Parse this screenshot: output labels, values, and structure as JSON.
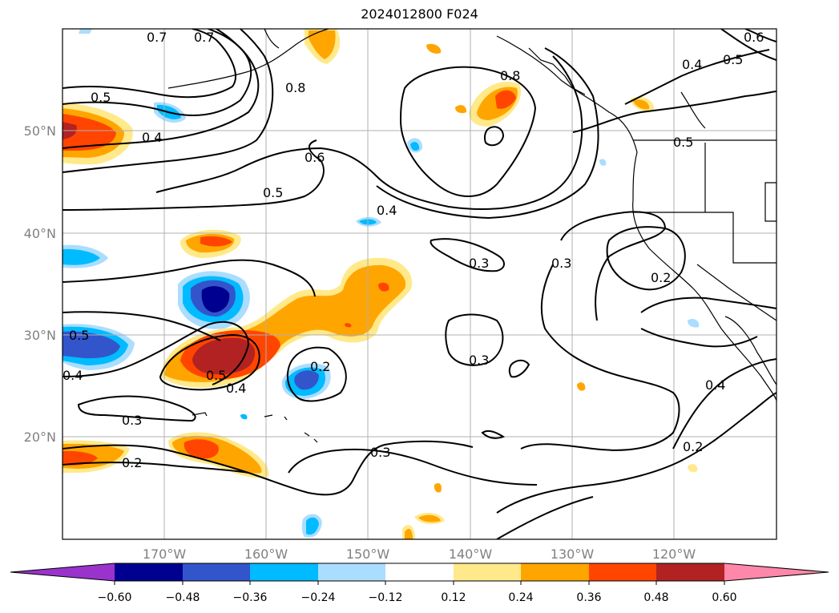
{
  "title": "2024012800 F024",
  "map": {
    "longitude_labels": [
      "170°W",
      "160°W",
      "150°W",
      "140°W",
      "130°W",
      "120°W"
    ],
    "latitude_labels": [
      "20°N",
      "30°N",
      "40°N",
      "50°N"
    ],
    "contour_labels": [
      "0.7",
      "0.7",
      "0.8",
      "0.8",
      "0.5",
      "0.4",
      "0.6",
      "0.5",
      "0.4",
      "0.4",
      "0.5",
      "0.6",
      "0.4",
      "0.3",
      "0.3",
      "0.2",
      "0.5",
      "0.4",
      "0.5",
      "0.2",
      "0.3",
      "0.4",
      "0.3",
      "0.2",
      "0.3",
      "0.2",
      "0.5"
    ]
  },
  "colorbar": {
    "tick_labels": [
      "−0.60",
      "−0.48",
      "−0.36",
      "−0.24",
      "−0.12",
      "0.12",
      "0.24",
      "0.36",
      "0.48",
      "0.60"
    ],
    "colors": [
      "#9933cc",
      "#000090",
      "#3355cc",
      "#00bbff",
      "#aaddff",
      "#ffffff",
      "#ffe98a",
      "#ffa500",
      "#ff4500",
      "#b22222",
      "#ff88aa"
    ]
  }
}
